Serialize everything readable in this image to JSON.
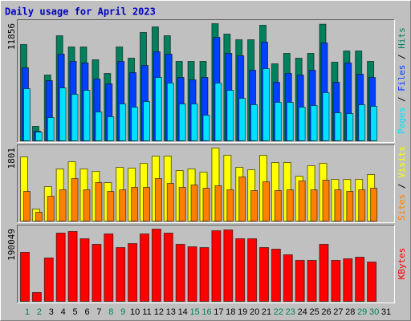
{
  "title": "Daily usage for April 2023",
  "chart_data": [
    {
      "type": "bar",
      "ylim": [
        0,
        11856
      ],
      "yticks": [
        11856
      ],
      "legend_separator": " / ",
      "series": [
        {
          "name": "Hits",
          "color": "#00805c",
          "values": [
            9744,
            1462,
            6658,
            10637,
            9500,
            9500,
            8201,
            6821,
            9500,
            8364,
            10962,
            11530,
            10637,
            8039,
            8039,
            8039,
            11856,
            10800,
            10231,
            10231,
            11693,
            7795,
            8851,
            8364,
            8851,
            11800,
            7958,
            9094,
            9094,
            8039,
            null
          ]
        },
        {
          "name": "Files",
          "color": "#0040ff",
          "values": [
            7389,
            974,
            6090,
            8770,
            8039,
            7876,
            6252,
            5765,
            8039,
            6902,
            7633,
            9013,
            8770,
            6415,
            6171,
            6415,
            10475,
            8851,
            8607,
            7146,
            9988,
            5928,
            6821,
            6658,
            7146,
            9906,
            5928,
            7876,
            6740,
            6415,
            null
          ]
        },
        {
          "name": "Pages",
          "color": "#00e0ff",
          "values": [
            5278,
            893,
            2355,
            5359,
            4710,
            5116,
            2923,
            2436,
            3735,
            3410,
            3979,
            6415,
            5846,
            3735,
            3735,
            2598,
            5846,
            5116,
            4304,
            3654,
            7308,
            3898,
            3898,
            3410,
            3573,
            4872,
            2842,
            2761,
            3654,
            3492,
            null
          ]
        }
      ]
    },
    {
      "type": "bar",
      "ylim": [
        0,
        1801
      ],
      "yticks": [
        1801
      ],
      "legend_separator": " / ",
      "series": [
        {
          "name": "Visits",
          "color": "#ffff00",
          "values": [
            1583,
            297,
            851,
            1286,
            1464,
            1286,
            1227,
            950,
            1326,
            1306,
            1425,
            1603,
            1603,
            1247,
            1286,
            1207,
            1801,
            1623,
            1326,
            1267,
            1623,
            1445,
            1445,
            1108,
            1366,
            1425,
            1029,
            1029,
            1029,
            1148,
            null
          ]
        },
        {
          "name": "Sites",
          "color": "#ff8000",
          "values": [
            732,
            218,
            613,
            772,
            1049,
            772,
            950,
            732,
            772,
            831,
            831,
            1049,
            930,
            831,
            891,
            811,
            871,
            772,
            1088,
            752,
            970,
            752,
            772,
            990,
            772,
            1009,
            772,
            732,
            772,
            811,
            null
          ]
        }
      ]
    },
    {
      "type": "bar",
      "ylim": [
        0,
        190049
      ],
      "yticks": [
        190049
      ],
      "categories": [
        1,
        2,
        3,
        4,
        5,
        6,
        7,
        8,
        9,
        10,
        11,
        12,
        13,
        14,
        15,
        16,
        17,
        18,
        19,
        20,
        21,
        22,
        23,
        24,
        25,
        26,
        27,
        28,
        29,
        30,
        31
      ],
      "weekend": [
        1,
        2,
        8,
        9,
        15,
        16,
        22,
        23,
        29,
        30
      ],
      "weekend_color": "#00805c",
      "series": [
        {
          "name": "KBytes",
          "color": "#ff0000",
          "values": [
            128832,
            23232,
            114048,
            179520,
            183744,
            164736,
            149952,
            177408,
            141504,
            152064,
            177408,
            190049,
            179520,
            149952,
            143616,
            141504,
            185856,
            187968,
            164736,
            164736,
            141504,
            137280,
            122496,
            107712,
            107712,
            149952,
            107712,
            111936,
            116160,
            103488,
            null
          ]
        }
      ]
    }
  ]
}
